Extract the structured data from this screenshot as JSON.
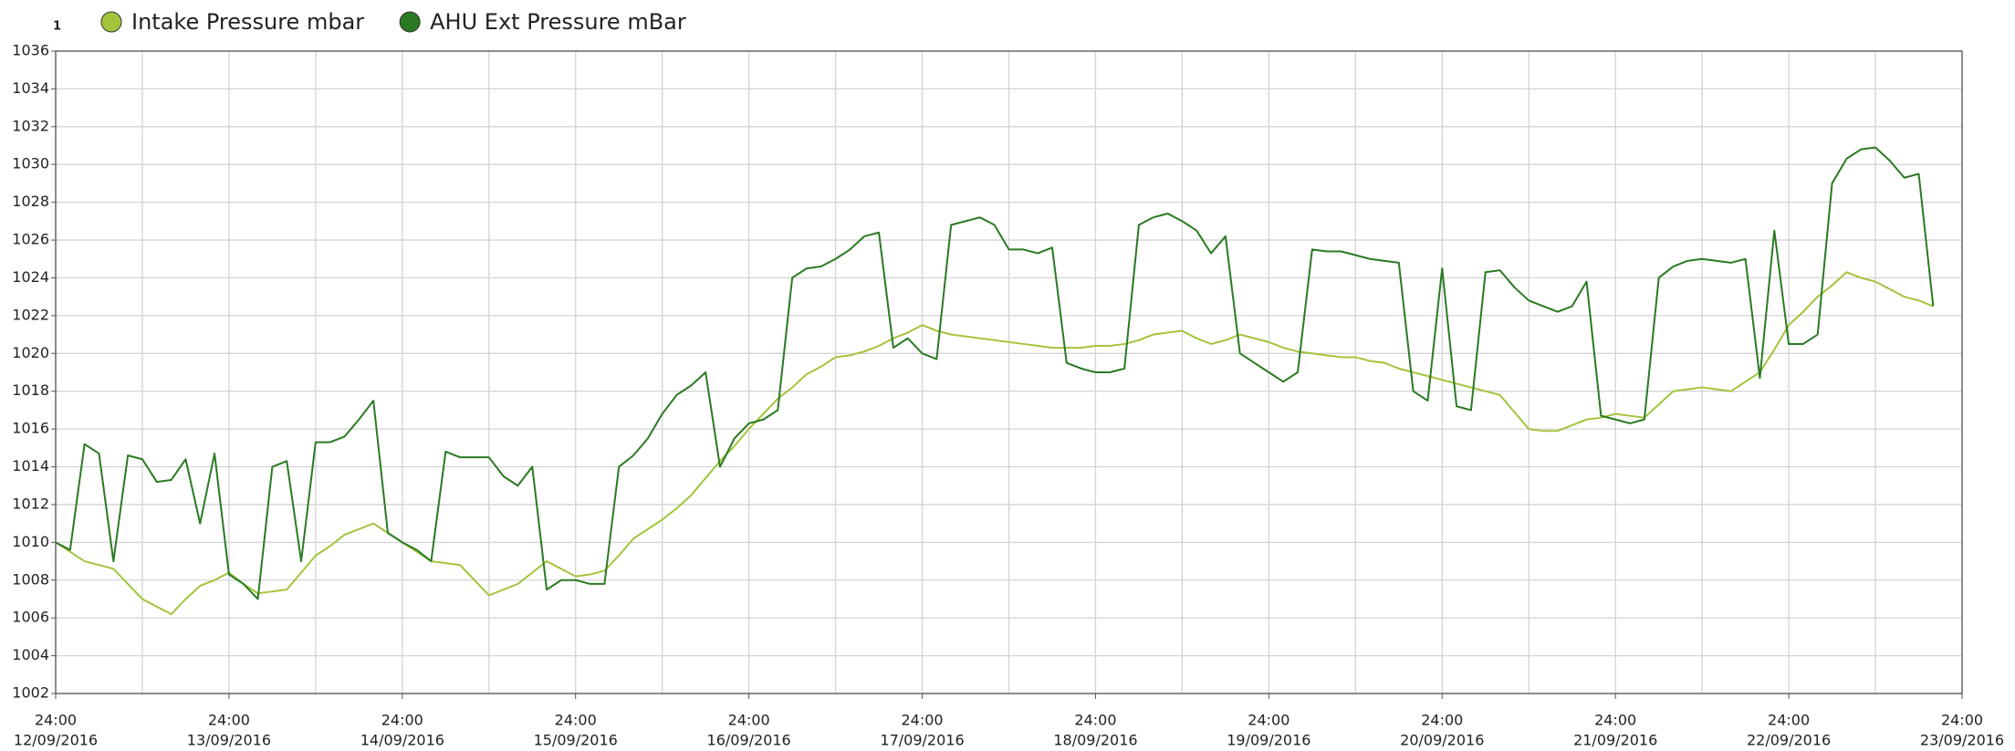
{
  "chart_data": {
    "type": "line",
    "y_axis_label": "1",
    "x": [
      "2016-09-12 24:00",
      "2016-09-13 02:00",
      "2016-09-13 04:00",
      "2016-09-13 06:00",
      "2016-09-13 08:00",
      "2016-09-13 10:00",
      "2016-09-13 12:00",
      "2016-09-13 14:00",
      "2016-09-13 16:00",
      "2016-09-13 18:00",
      "2016-09-13 20:00",
      "2016-09-13 22:00",
      "2016-09-13 24:00",
      "2016-09-14 02:00",
      "2016-09-14 04:00",
      "2016-09-14 06:00",
      "2016-09-14 08:00",
      "2016-09-14 10:00",
      "2016-09-14 12:00",
      "2016-09-14 14:00",
      "2016-09-14 16:00",
      "2016-09-14 18:00",
      "2016-09-14 20:00",
      "2016-09-14 22:00",
      "2016-09-14 24:00",
      "2016-09-15 02:00",
      "2016-09-15 04:00",
      "2016-09-15 06:00",
      "2016-09-15 08:00",
      "2016-09-15 10:00",
      "2016-09-15 12:00",
      "2016-09-15 14:00",
      "2016-09-15 16:00",
      "2016-09-15 18:00",
      "2016-09-15 20:00",
      "2016-09-15 22:00",
      "2016-09-15 24:00",
      "2016-09-16 02:00",
      "2016-09-16 04:00",
      "2016-09-16 06:00",
      "2016-09-16 08:00",
      "2016-09-16 10:00",
      "2016-09-16 12:00",
      "2016-09-16 14:00",
      "2016-09-16 16:00",
      "2016-09-16 18:00",
      "2016-09-16 20:00",
      "2016-09-16 22:00",
      "2016-09-16 24:00",
      "2016-09-17 02:00",
      "2016-09-17 04:00",
      "2016-09-17 06:00",
      "2016-09-17 08:00",
      "2016-09-17 10:00",
      "2016-09-17 12:00",
      "2016-09-17 14:00",
      "2016-09-17 16:00",
      "2016-09-17 18:00",
      "2016-09-17 20:00",
      "2016-09-17 22:00",
      "2016-09-17 24:00",
      "2016-09-18 02:00",
      "2016-09-18 04:00",
      "2016-09-18 06:00",
      "2016-09-18 08:00",
      "2016-09-18 10:00",
      "2016-09-18 12:00",
      "2016-09-18 14:00",
      "2016-09-18 16:00",
      "2016-09-18 18:00",
      "2016-09-18 20:00",
      "2016-09-18 22:00",
      "2016-09-18 24:00",
      "2016-09-19 02:00",
      "2016-09-19 04:00",
      "2016-09-19 06:00",
      "2016-09-19 08:00",
      "2016-09-19 10:00",
      "2016-09-19 12:00",
      "2016-09-19 14:00",
      "2016-09-19 16:00",
      "2016-09-19 18:00",
      "2016-09-19 20:00",
      "2016-09-19 22:00",
      "2016-09-19 24:00",
      "2016-09-20 02:00",
      "2016-09-20 04:00",
      "2016-09-20 06:00",
      "2016-09-20 08:00",
      "2016-09-20 10:00",
      "2016-09-20 12:00",
      "2016-09-20 14:00",
      "2016-09-20 16:00",
      "2016-09-20 18:00",
      "2016-09-20 20:00",
      "2016-09-20 22:00",
      "2016-09-20 24:00",
      "2016-09-21 02:00",
      "2016-09-21 04:00",
      "2016-09-21 06:00",
      "2016-09-21 08:00",
      "2016-09-21 10:00",
      "2016-09-21 12:00",
      "2016-09-21 14:00",
      "2016-09-21 16:00",
      "2016-09-21 18:00",
      "2016-09-21 20:00",
      "2016-09-21 22:00",
      "2016-09-21 24:00",
      "2016-09-22 02:00",
      "2016-09-22 04:00",
      "2016-09-22 06:00",
      "2016-09-22 08:00",
      "2016-09-22 10:00",
      "2016-09-22 12:00",
      "2016-09-22 14:00",
      "2016-09-22 16:00",
      "2016-09-22 18:00",
      "2016-09-22 20:00",
      "2016-09-22 22:00",
      "2016-09-22 24:00",
      "2016-09-23 02:00",
      "2016-09-23 04:00",
      "2016-09-23 06:00",
      "2016-09-23 08:00",
      "2016-09-23 10:00",
      "2016-09-23 12:00",
      "2016-09-23 14:00",
      "2016-09-23 16:00",
      "2016-09-23 18:00",
      "2016-09-23 20:00"
    ],
    "series": [
      {
        "name": "Intake Pressure mbar",
        "color": "#a3c43c",
        "values": [
          1010,
          1009.5,
          1009,
          1008.8,
          1008.6,
          1007.8,
          1007,
          1006.6,
          1006.2,
          1007,
          1007.7,
          1008,
          1008.4,
          1007.8,
          1007.3,
          1007.4,
          1007.5,
          1008.4,
          1009.3,
          1009.8,
          1010.4,
          1010.7,
          1011,
          1010.5,
          1010,
          1009.5,
          1009,
          1008.9,
          1008.8,
          1008,
          1007.2,
          1007.5,
          1007.8,
          1008.4,
          1009,
          1008.6,
          1008.2,
          1008.3,
          1008.5,
          1009.3,
          1010.2,
          1010.7,
          1011.2,
          1011.8,
          1012.5,
          1013.4,
          1014.3,
          1015.1,
          1016,
          1016.8,
          1017.6,
          1018.2,
          1018.9,
          1019.3,
          1019.8,
          1019.9,
          1020.1,
          1020.4,
          1020.8,
          1021.1,
          1021.5,
          1021.2,
          1021,
          1020.9,
          1020.8,
          1020.7,
          1020.6,
          1020.5,
          1020.4,
          1020.3,
          1020.3,
          1020.3,
          1020.4,
          1020.4,
          1020.5,
          1020.7,
          1021,
          1021.1,
          1021.2,
          1020.8,
          1020.5,
          1020.7,
          1021,
          1020.8,
          1020.6,
          1020.3,
          1020.1,
          1020,
          1019.9,
          1019.8,
          1019.8,
          1019.6,
          1019.5,
          1019.2,
          1019,
          1018.8,
          1018.6,
          1018.4,
          1018.2,
          1018,
          1017.8,
          1016.9,
          1016,
          1015.9,
          1015.9,
          1016.2,
          1016.5,
          1016.6,
          1016.8,
          1016.7,
          1016.6,
          1017.3,
          1018,
          1018.1,
          1018.2,
          1018.1,
          1018,
          1018.5,
          1019,
          1020.2,
          1021.5,
          1022.2,
          1023,
          1023.6,
          1024.3,
          1024,
          1023.8,
          1023.4,
          1023,
          1022.8,
          1022.5
        ]
      },
      {
        "name": "AHU Ext Pressure mBar",
        "color": "#2a7a22",
        "values": [
          1010,
          1009.6,
          1015.2,
          1014.7,
          1009,
          1014.6,
          1014.4,
          1013.2,
          1013.3,
          1014.4,
          1011,
          1014.7,
          1008.3,
          1007.8,
          1007,
          1014,
          1014.3,
          1009,
          1015.3,
          1015.3,
          1015.6,
          1016.5,
          1017.5,
          1010.5,
          1010,
          1009.6,
          1009,
          1014.8,
          1014.5,
          1014.5,
          1014.5,
          1013.5,
          1013,
          1014,
          1007.5,
          1008,
          1008,
          1007.8,
          1007.8,
          1014,
          1014.6,
          1015.5,
          1016.8,
          1017.8,
          1018.3,
          1019,
          1014,
          1015.5,
          1016.3,
          1016.5,
          1017,
          1024,
          1024.5,
          1024.6,
          1025,
          1025.5,
          1026.2,
          1026.4,
          1020.3,
          1020.8,
          1020,
          1019.7,
          1026.8,
          1027,
          1027.2,
          1026.8,
          1025.5,
          1025.5,
          1025.3,
          1025.6,
          1019.5,
          1019.2,
          1019,
          1019,
          1019.2,
          1026.8,
          1027.2,
          1027.4,
          1027,
          1026.5,
          1025.3,
          1026.2,
          1020,
          1019.5,
          1019,
          1018.5,
          1019,
          1025.5,
          1025.4,
          1025.4,
          1025.2,
          1025,
          1024.9,
          1024.8,
          1018,
          1017.5,
          1024.5,
          1017.2,
          1017,
          1024.3,
          1024.4,
          1023.5,
          1022.8,
          1022.5,
          1022.2,
          1022.5,
          1023.8,
          1016.7,
          1016.5,
          1016.3,
          1016.5,
          1024,
          1024.6,
          1024.9,
          1025,
          1024.9,
          1024.8,
          1025,
          1018.7,
          1026.5,
          1020.5,
          1020.5,
          1021,
          1029,
          1030.3,
          1030.8,
          1030.9,
          1030.2,
          1029.3,
          1029.5,
          1022.5
        ]
      }
    ],
    "xlim": [
      "2016-09-12 24:00",
      "2016-09-23 24:00"
    ],
    "xticks": [
      {
        "value": "2016-09-12 24:00",
        "label": [
          "24:00",
          "12/09/2016"
        ]
      },
      {
        "value": "2016-09-13 24:00",
        "label": [
          "24:00",
          "13/09/2016"
        ]
      },
      {
        "value": "2016-09-14 24:00",
        "label": [
          "24:00",
          "14/09/2016"
        ]
      },
      {
        "value": "2016-09-15 24:00",
        "label": [
          "24:00",
          "15/09/2016"
        ]
      },
      {
        "value": "2016-09-16 24:00",
        "label": [
          "24:00",
          "16/09/2016"
        ]
      },
      {
        "value": "2016-09-17 24:00",
        "label": [
          "24:00",
          "17/09/2016"
        ]
      },
      {
        "value": "2016-09-18 24:00",
        "label": [
          "24:00",
          "18/09/2016"
        ]
      },
      {
        "value": "2016-09-19 24:00",
        "label": [
          "24:00",
          "19/09/2016"
        ]
      },
      {
        "value": "2016-09-20 24:00",
        "label": [
          "24:00",
          "20/09/2016"
        ]
      },
      {
        "value": "2016-09-21 24:00",
        "label": [
          "24:00",
          "21/09/2016"
        ]
      },
      {
        "value": "2016-09-22 24:00",
        "label": [
          "24:00",
          "22/09/2016"
        ]
      },
      {
        "value": "2016-09-23 24:00",
        "label": [
          "24:00",
          "23/09/2016"
        ]
      }
    ],
    "xgrid_minor": [
      "2016-09-13 12:00",
      "2016-09-14 12:00",
      "2016-09-15 12:00",
      "2016-09-16 12:00",
      "2016-09-17 12:00",
      "2016-09-18 12:00",
      "2016-09-19 12:00",
      "2016-09-20 12:00",
      "2016-09-21 12:00",
      "2016-09-22 12:00",
      "2016-09-23 12:00"
    ],
    "ylim": [
      1002,
      1036
    ],
    "yticks": [
      1002,
      1004,
      1006,
      1008,
      1010,
      1012,
      1014,
      1016,
      1018,
      1020,
      1022,
      1024,
      1026,
      1028,
      1030,
      1032,
      1034,
      1036
    ],
    "grid": true
  }
}
